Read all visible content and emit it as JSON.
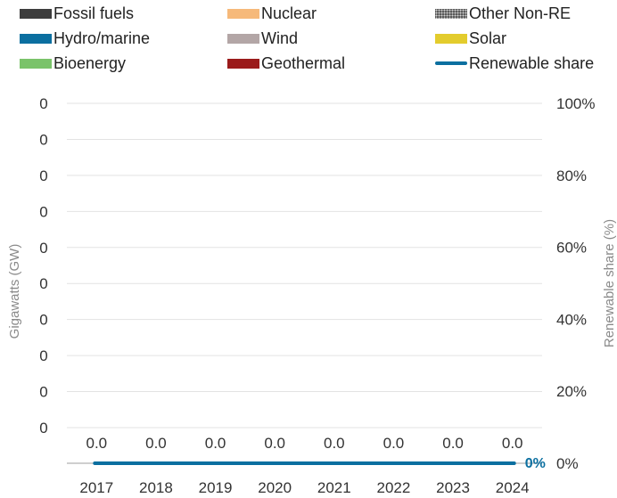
{
  "chart_data": {
    "type": "bar",
    "stacked": true,
    "categories": [
      "2017",
      "2018",
      "2019",
      "2020",
      "2021",
      "2022",
      "2023",
      "2024"
    ],
    "series": [
      {
        "name": "Fossil fuels",
        "color": "#3d3d3d",
        "values": [
          0,
          0,
          0,
          0,
          0,
          0,
          0,
          0
        ]
      },
      {
        "name": "Nuclear",
        "color": "#f6b97a",
        "values": [
          0,
          0,
          0,
          0,
          0,
          0,
          0,
          0
        ]
      },
      {
        "name": "Other Non-RE",
        "color": "#555555",
        "pattern": "dotted",
        "values": [
          0,
          0,
          0,
          0,
          0,
          0,
          0,
          0
        ]
      },
      {
        "name": "Hydro/marine",
        "color": "#0b6fa0",
        "values": [
          0,
          0,
          0,
          0,
          0,
          0,
          0,
          0
        ]
      },
      {
        "name": "Wind",
        "color": "#b3a6a6",
        "values": [
          0,
          0,
          0,
          0,
          0,
          0,
          0,
          0
        ]
      },
      {
        "name": "Solar",
        "color": "#e3cc2d",
        "values": [
          0,
          0,
          0,
          0,
          0,
          0,
          0,
          0
        ]
      },
      {
        "name": "Bioenergy",
        "color": "#7ac36a",
        "values": [
          0,
          0,
          0,
          0,
          0,
          0,
          0,
          0
        ]
      },
      {
        "name": "Geothermal",
        "color": "#9b1b1b",
        "values": [
          0,
          0,
          0,
          0,
          0,
          0,
          0,
          0
        ]
      }
    ],
    "line_series": {
      "name": "Renewable share",
      "color": "#0b6fa0",
      "axis": "right",
      "values": [
        0,
        0,
        0,
        0,
        0,
        0,
        0,
        0
      ]
    },
    "total_labels": [
      "0.0",
      "0.0",
      "0.0",
      "0.0",
      "0.0",
      "0.0",
      "0.0",
      "0.0"
    ],
    "line_end_label": "0%",
    "y_left_ticks": [
      "0",
      "0",
      "0",
      "0",
      "0",
      "0",
      "0",
      "0",
      "0",
      "0"
    ],
    "y_right_ticks": [
      "100%",
      "80%",
      "60%",
      "40%",
      "20%",
      "0%"
    ],
    "ylabel": "Gigawatts (GW)",
    "y2label": "Renewable share (%)",
    "y2lim": [
      0,
      100
    ],
    "grid": true,
    "legend_position": "top"
  }
}
